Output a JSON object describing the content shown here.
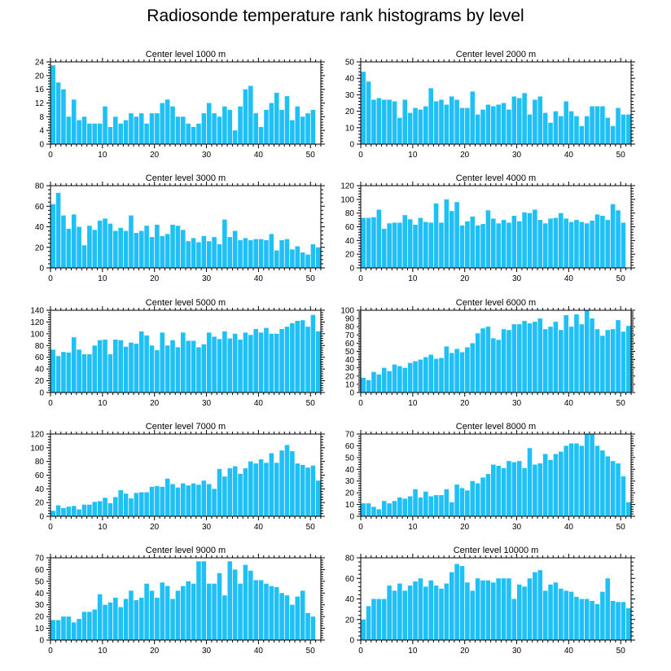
{
  "title": "Radiosonde temperature rank histograms by level",
  "colors": {
    "bar": "#1ec0f5",
    "bar_edge": "#ffffff",
    "axis": "#000000"
  },
  "chart_data": [
    {
      "type": "bar",
      "title": "Center level 1000 m",
      "xlim": [
        0,
        52
      ],
      "ylim": [
        0,
        24
      ],
      "xticks": [
        0,
        10,
        20,
        30,
        40,
        50
      ],
      "yticks": [
        0,
        4,
        8,
        12,
        16,
        20,
        24
      ],
      "x": [
        0,
        1,
        2,
        3,
        4,
        5,
        6,
        7,
        8,
        9,
        10,
        11,
        12,
        13,
        14,
        15,
        16,
        17,
        18,
        19,
        20,
        21,
        22,
        23,
        24,
        25,
        26,
        27,
        28,
        29,
        30,
        31,
        32,
        33,
        34,
        35,
        36,
        37,
        38,
        39,
        40,
        41,
        42,
        43,
        44,
        45,
        46,
        47,
        48,
        49,
        50,
        51
      ],
      "values": [
        23,
        18,
        16,
        8,
        13,
        7,
        8,
        6,
        6,
        6,
        11,
        5,
        8,
        6,
        7,
        9,
        8,
        9,
        6,
        9,
        9,
        12,
        13,
        11,
        8,
        8,
        6,
        5,
        6,
        9,
        12,
        9,
        8,
        11,
        10,
        4,
        11,
        16,
        17,
        9,
        5,
        10,
        12,
        15,
        10,
        14,
        7,
        11,
        8,
        9,
        10,
        null
      ]
    },
    {
      "type": "bar",
      "title": "Center level 2000 m",
      "xlim": [
        0,
        52
      ],
      "ylim": [
        0,
        50
      ],
      "xticks": [
        0,
        10,
        20,
        30,
        40,
        50
      ],
      "yticks": [
        0,
        10,
        20,
        30,
        40,
        50
      ],
      "x": [
        0,
        1,
        2,
        3,
        4,
        5,
        6,
        7,
        8,
        9,
        10,
        11,
        12,
        13,
        14,
        15,
        16,
        17,
        18,
        19,
        20,
        21,
        22,
        23,
        24,
        25,
        26,
        27,
        28,
        29,
        30,
        31,
        32,
        33,
        34,
        35,
        36,
        37,
        38,
        39,
        40,
        41,
        42,
        43,
        44,
        45,
        46,
        47,
        48,
        49,
        50,
        51
      ],
      "values": [
        44,
        38,
        27,
        28,
        27,
        27,
        26,
        16,
        27,
        19,
        22,
        21,
        23,
        34,
        26,
        27,
        24,
        29,
        27,
        22,
        22,
        32,
        18,
        21,
        24,
        23,
        24,
        25,
        21,
        29,
        28,
        31,
        18,
        27,
        29,
        19,
        13,
        20,
        17,
        26,
        20,
        17,
        11,
        17,
        23,
        23,
        23,
        16,
        11,
        22,
        18,
        18
      ]
    },
    {
      "type": "bar",
      "title": "Center level 3000 m",
      "xlim": [
        0,
        52
      ],
      "ylim": [
        0,
        80
      ],
      "xticks": [
        0,
        10,
        20,
        30,
        40,
        50
      ],
      "yticks": [
        0,
        20,
        40,
        60,
        80
      ],
      "x": [
        0,
        1,
        2,
        3,
        4,
        5,
        6,
        7,
        8,
        9,
        10,
        11,
        12,
        13,
        14,
        15,
        16,
        17,
        18,
        19,
        20,
        21,
        22,
        23,
        24,
        25,
        26,
        27,
        28,
        29,
        30,
        31,
        32,
        33,
        34,
        35,
        36,
        37,
        38,
        39,
        40,
        41,
        42,
        43,
        44,
        45,
        46,
        47,
        48,
        49,
        50,
        51
      ],
      "values": [
        62,
        73,
        51,
        38,
        52,
        40,
        22,
        41,
        37,
        46,
        48,
        43,
        36,
        39,
        36,
        51,
        34,
        36,
        41,
        30,
        42,
        31,
        33,
        42,
        41,
        37,
        26,
        29,
        25,
        31,
        26,
        30,
        23,
        47,
        30,
        36,
        27,
        29,
        27,
        28,
        28,
        27,
        33,
        17,
        27,
        28,
        18,
        21,
        15,
        13,
        23,
        20
      ]
    },
    {
      "type": "bar",
      "title": "Center level 4000 m",
      "xlim": [
        0,
        52
      ],
      "ylim": [
        0,
        120
      ],
      "xticks": [
        0,
        10,
        20,
        30,
        40,
        50
      ],
      "yticks": [
        0,
        20,
        40,
        60,
        80,
        100,
        120
      ],
      "x": [
        0,
        1,
        2,
        3,
        4,
        5,
        6,
        7,
        8,
        9,
        10,
        11,
        12,
        13,
        14,
        15,
        16,
        17,
        18,
        19,
        20,
        21,
        22,
        23,
        24,
        25,
        26,
        27,
        28,
        29,
        30,
        31,
        32,
        33,
        34,
        35,
        36,
        37,
        38,
        39,
        40,
        41,
        42,
        43,
        44,
        45,
        46,
        47,
        48,
        49,
        50,
        51
      ],
      "values": [
        73,
        73,
        74,
        85,
        57,
        65,
        66,
        66,
        77,
        71,
        63,
        73,
        67,
        66,
        94,
        66,
        100,
        83,
        96,
        62,
        68,
        75,
        62,
        64,
        84,
        72,
        65,
        70,
        66,
        76,
        68,
        81,
        80,
        85,
        70,
        65,
        72,
        73,
        80,
        72,
        67,
        70,
        67,
        65,
        69,
        78,
        76,
        70,
        93,
        84,
        66,
        null
      ]
    },
    {
      "type": "bar",
      "title": "Center level 5000 m",
      "xlim": [
        0,
        52
      ],
      "ylim": [
        0,
        140
      ],
      "xticks": [
        0,
        10,
        20,
        30,
        40,
        50
      ],
      "yticks": [
        0,
        20,
        40,
        60,
        80,
        100,
        120,
        140
      ],
      "x": [
        0,
        1,
        2,
        3,
        4,
        5,
        6,
        7,
        8,
        9,
        10,
        11,
        12,
        13,
        14,
        15,
        16,
        17,
        18,
        19,
        20,
        21,
        22,
        23,
        24,
        25,
        26,
        27,
        28,
        29,
        30,
        31,
        32,
        33,
        34,
        35,
        36,
        37,
        38,
        39,
        40,
        41,
        42,
        43,
        44,
        45,
        46,
        47,
        48,
        49,
        50,
        51
      ],
      "values": [
        73,
        62,
        69,
        68,
        94,
        73,
        65,
        65,
        80,
        89,
        90,
        65,
        90,
        89,
        78,
        85,
        83,
        104,
        97,
        80,
        72,
        102,
        80,
        89,
        77,
        102,
        88,
        88,
        77,
        82,
        102,
        95,
        91,
        104,
        92,
        100,
        90,
        102,
        98,
        108,
        102,
        110,
        100,
        100,
        108,
        112,
        118,
        122,
        123,
        112,
        132,
        104
      ]
    },
    {
      "type": "bar",
      "title": "Center level 6000 m",
      "xlim": [
        0,
        52
      ],
      "ylim": [
        0,
        100
      ],
      "xticks": [
        0,
        10,
        20,
        30,
        40,
        50
      ],
      "yticks": [
        0,
        10,
        20,
        30,
        40,
        50,
        60,
        70,
        80,
        90,
        100
      ],
      "x": [
        0,
        1,
        2,
        3,
        4,
        5,
        6,
        7,
        8,
        9,
        10,
        11,
        12,
        13,
        14,
        15,
        16,
        17,
        18,
        19,
        20,
        21,
        22,
        23,
        24,
        25,
        26,
        27,
        28,
        29,
        30,
        31,
        32,
        33,
        34,
        35,
        36,
        37,
        38,
        39,
        40,
        41,
        42,
        43,
        44,
        45,
        46,
        47,
        48,
        49,
        50,
        51
      ],
      "values": [
        18,
        15,
        25,
        22,
        30,
        26,
        34,
        32,
        30,
        36,
        38,
        40,
        43,
        46,
        41,
        42,
        56,
        48,
        53,
        49,
        55,
        60,
        72,
        78,
        80,
        66,
        64,
        77,
        76,
        83,
        83,
        87,
        84,
        86,
        90,
        77,
        80,
        86,
        76,
        94,
        80,
        95,
        83,
        100,
        90,
        77,
        69,
        76,
        77,
        88,
        74,
        81
      ]
    },
    {
      "type": "bar",
      "title": "Center level 7000 m",
      "xlim": [
        0,
        52
      ],
      "ylim": [
        0,
        120
      ],
      "xticks": [
        0,
        10,
        20,
        30,
        40,
        50
      ],
      "yticks": [
        0,
        20,
        40,
        60,
        80,
        100,
        120
      ],
      "x": [
        0,
        1,
        2,
        3,
        4,
        5,
        6,
        7,
        8,
        9,
        10,
        11,
        12,
        13,
        14,
        15,
        16,
        17,
        18,
        19,
        20,
        21,
        22,
        23,
        24,
        25,
        26,
        27,
        28,
        29,
        30,
        31,
        32,
        33,
        34,
        35,
        36,
        37,
        38,
        39,
        40,
        41,
        42,
        43,
        44,
        45,
        46,
        47,
        48,
        49,
        50,
        51
      ],
      "values": [
        8,
        16,
        12,
        14,
        15,
        10,
        17,
        17,
        21,
        22,
        27,
        19,
        28,
        38,
        33,
        26,
        34,
        35,
        35,
        43,
        44,
        43,
        55,
        47,
        42,
        48,
        45,
        48,
        46,
        52,
        47,
        40,
        69,
        58,
        70,
        73,
        62,
        70,
        80,
        77,
        83,
        78,
        92,
        78,
        96,
        104,
        95,
        77,
        75,
        71,
        74,
        52
      ]
    },
    {
      "type": "bar",
      "title": "Center level 8000 m",
      "xlim": [
        0,
        52
      ],
      "ylim": [
        0,
        70
      ],
      "xticks": [
        0,
        10,
        20,
        30,
        40,
        50
      ],
      "yticks": [
        0,
        10,
        20,
        30,
        40,
        50,
        60,
        70
      ],
      "x": [
        0,
        1,
        2,
        3,
        4,
        5,
        6,
        7,
        8,
        9,
        10,
        11,
        12,
        13,
        14,
        15,
        16,
        17,
        18,
        19,
        20,
        21,
        22,
        23,
        24,
        25,
        26,
        27,
        28,
        29,
        30,
        31,
        32,
        33,
        34,
        35,
        36,
        37,
        38,
        39,
        40,
        41,
        42,
        43,
        44,
        45,
        46,
        47,
        48,
        49,
        50,
        51
      ],
      "values": [
        11,
        11,
        8,
        6,
        13,
        11,
        13,
        16,
        15,
        17,
        23,
        16,
        21,
        17,
        18,
        18,
        23,
        12,
        27,
        24,
        22,
        30,
        28,
        33,
        36,
        44,
        43,
        41,
        47,
        46,
        47,
        41,
        58,
        44,
        45,
        53,
        48,
        53,
        55,
        60,
        62,
        62,
        60,
        70,
        70,
        60,
        56,
        51,
        47,
        45,
        34,
        12
      ]
    },
    {
      "type": "bar",
      "title": "Center level 9000 m",
      "xlim": [
        0,
        52
      ],
      "ylim": [
        0,
        70
      ],
      "xticks": [
        0,
        10,
        20,
        30,
        40,
        50
      ],
      "yticks": [
        0,
        10,
        20,
        30,
        40,
        50,
        60,
        70
      ],
      "x": [
        0,
        1,
        2,
        3,
        4,
        5,
        6,
        7,
        8,
        9,
        10,
        11,
        12,
        13,
        14,
        15,
        16,
        17,
        18,
        19,
        20,
        21,
        22,
        23,
        24,
        25,
        26,
        27,
        28,
        29,
        30,
        31,
        32,
        33,
        34,
        35,
        36,
        37,
        38,
        39,
        40,
        41,
        42,
        43,
        44,
        45,
        46,
        47,
        48,
        49,
        50,
        51
      ],
      "values": [
        17,
        17,
        20,
        20,
        15,
        18,
        24,
        24,
        26,
        39,
        30,
        32,
        36,
        28,
        35,
        42,
        34,
        36,
        48,
        42,
        36,
        49,
        46,
        35,
        42,
        46,
        50,
        48,
        67,
        67,
        48,
        48,
        57,
        38,
        67,
        60,
        48,
        64,
        59,
        51,
        51,
        48,
        46,
        45,
        40,
        38,
        30,
        37,
        42,
        23,
        20,
        null
      ]
    },
    {
      "type": "bar",
      "title": "Center level 10000 m",
      "xlim": [
        0,
        52
      ],
      "ylim": [
        0,
        80
      ],
      "xticks": [
        0,
        10,
        20,
        30,
        40,
        50
      ],
      "yticks": [
        0,
        20,
        40,
        60,
        80
      ],
      "x": [
        0,
        1,
        2,
        3,
        4,
        5,
        6,
        7,
        8,
        9,
        10,
        11,
        12,
        13,
        14,
        15,
        16,
        17,
        18,
        19,
        20,
        21,
        22,
        23,
        24,
        25,
        26,
        27,
        28,
        29,
        30,
        31,
        32,
        33,
        34,
        35,
        36,
        37,
        38,
        39,
        40,
        41,
        42,
        43,
        44,
        45,
        46,
        47,
        48,
        49,
        50,
        51
      ],
      "values": [
        20,
        33,
        40,
        40,
        40,
        53,
        48,
        55,
        48,
        53,
        57,
        60,
        52,
        58,
        53,
        50,
        55,
        66,
        74,
        72,
        56,
        48,
        60,
        58,
        58,
        56,
        60,
        60,
        60,
        40,
        54,
        52,
        60,
        66,
        68,
        48,
        54,
        56,
        50,
        48,
        47,
        42,
        40,
        40,
        38,
        35,
        47,
        60,
        38,
        37,
        37,
        31
      ]
    }
  ]
}
